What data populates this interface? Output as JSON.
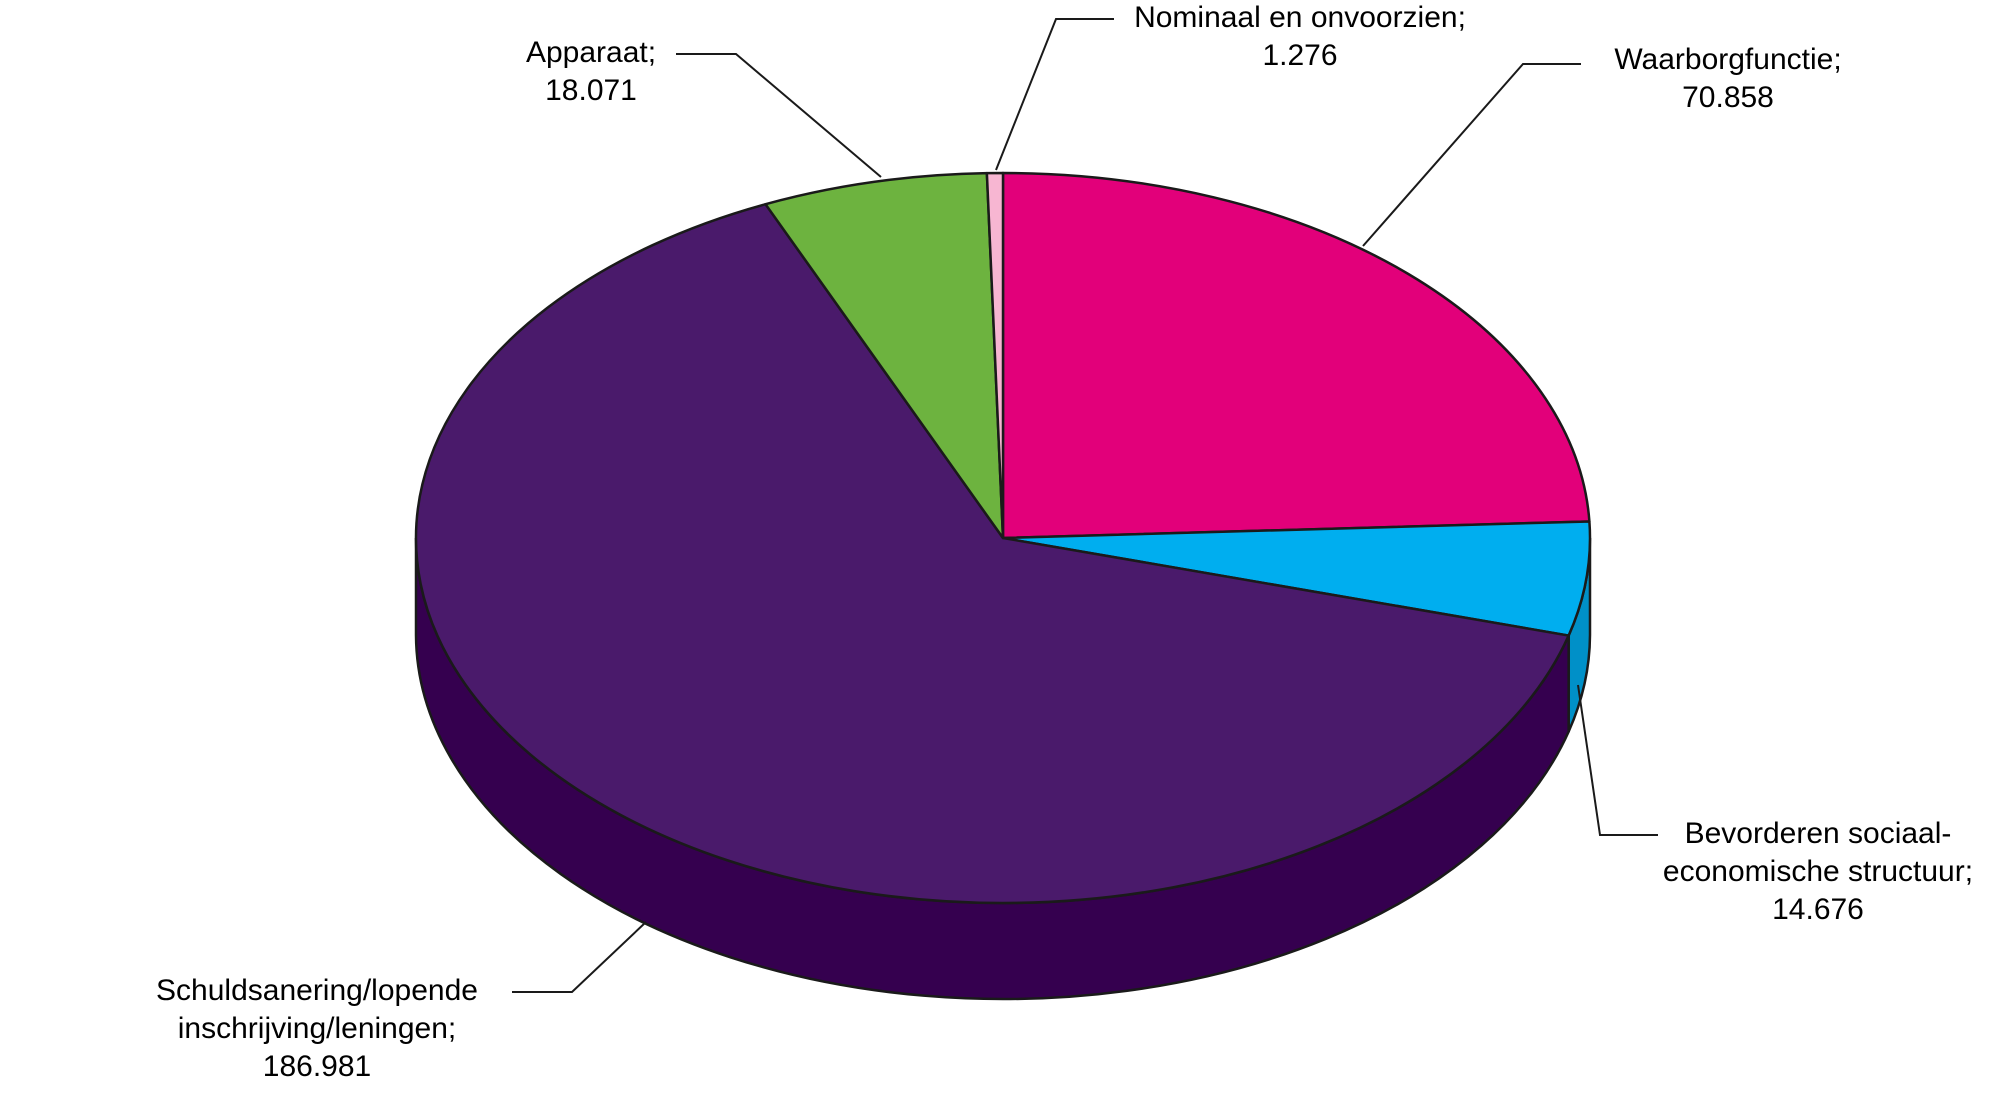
{
  "chart_data": {
    "type": "pie3d",
    "categories": [
      "Waarborgfunctie;",
      "Bevorderen sociaal-\neconomische structuur;",
      "Schuldsanering/lopende\ninschrijving/leningen;",
      "Apparaat;",
      "Nominaal en onvoorzien;"
    ],
    "values": [
      70858,
      14676,
      186981,
      18071,
      1276
    ],
    "value_labels": [
      "70.858",
      "14.676",
      "186.981",
      "18.071",
      "1.276"
    ],
    "colors": [
      "#e2007a",
      "#00aeef",
      "#4a1a6b",
      "#6db33f",
      "#f7b6d2"
    ],
    "side_colors": [
      "#b0005f",
      "#0090c8",
      "#35004f",
      "#4f8a2a",
      "#d88fb0"
    ]
  }
}
